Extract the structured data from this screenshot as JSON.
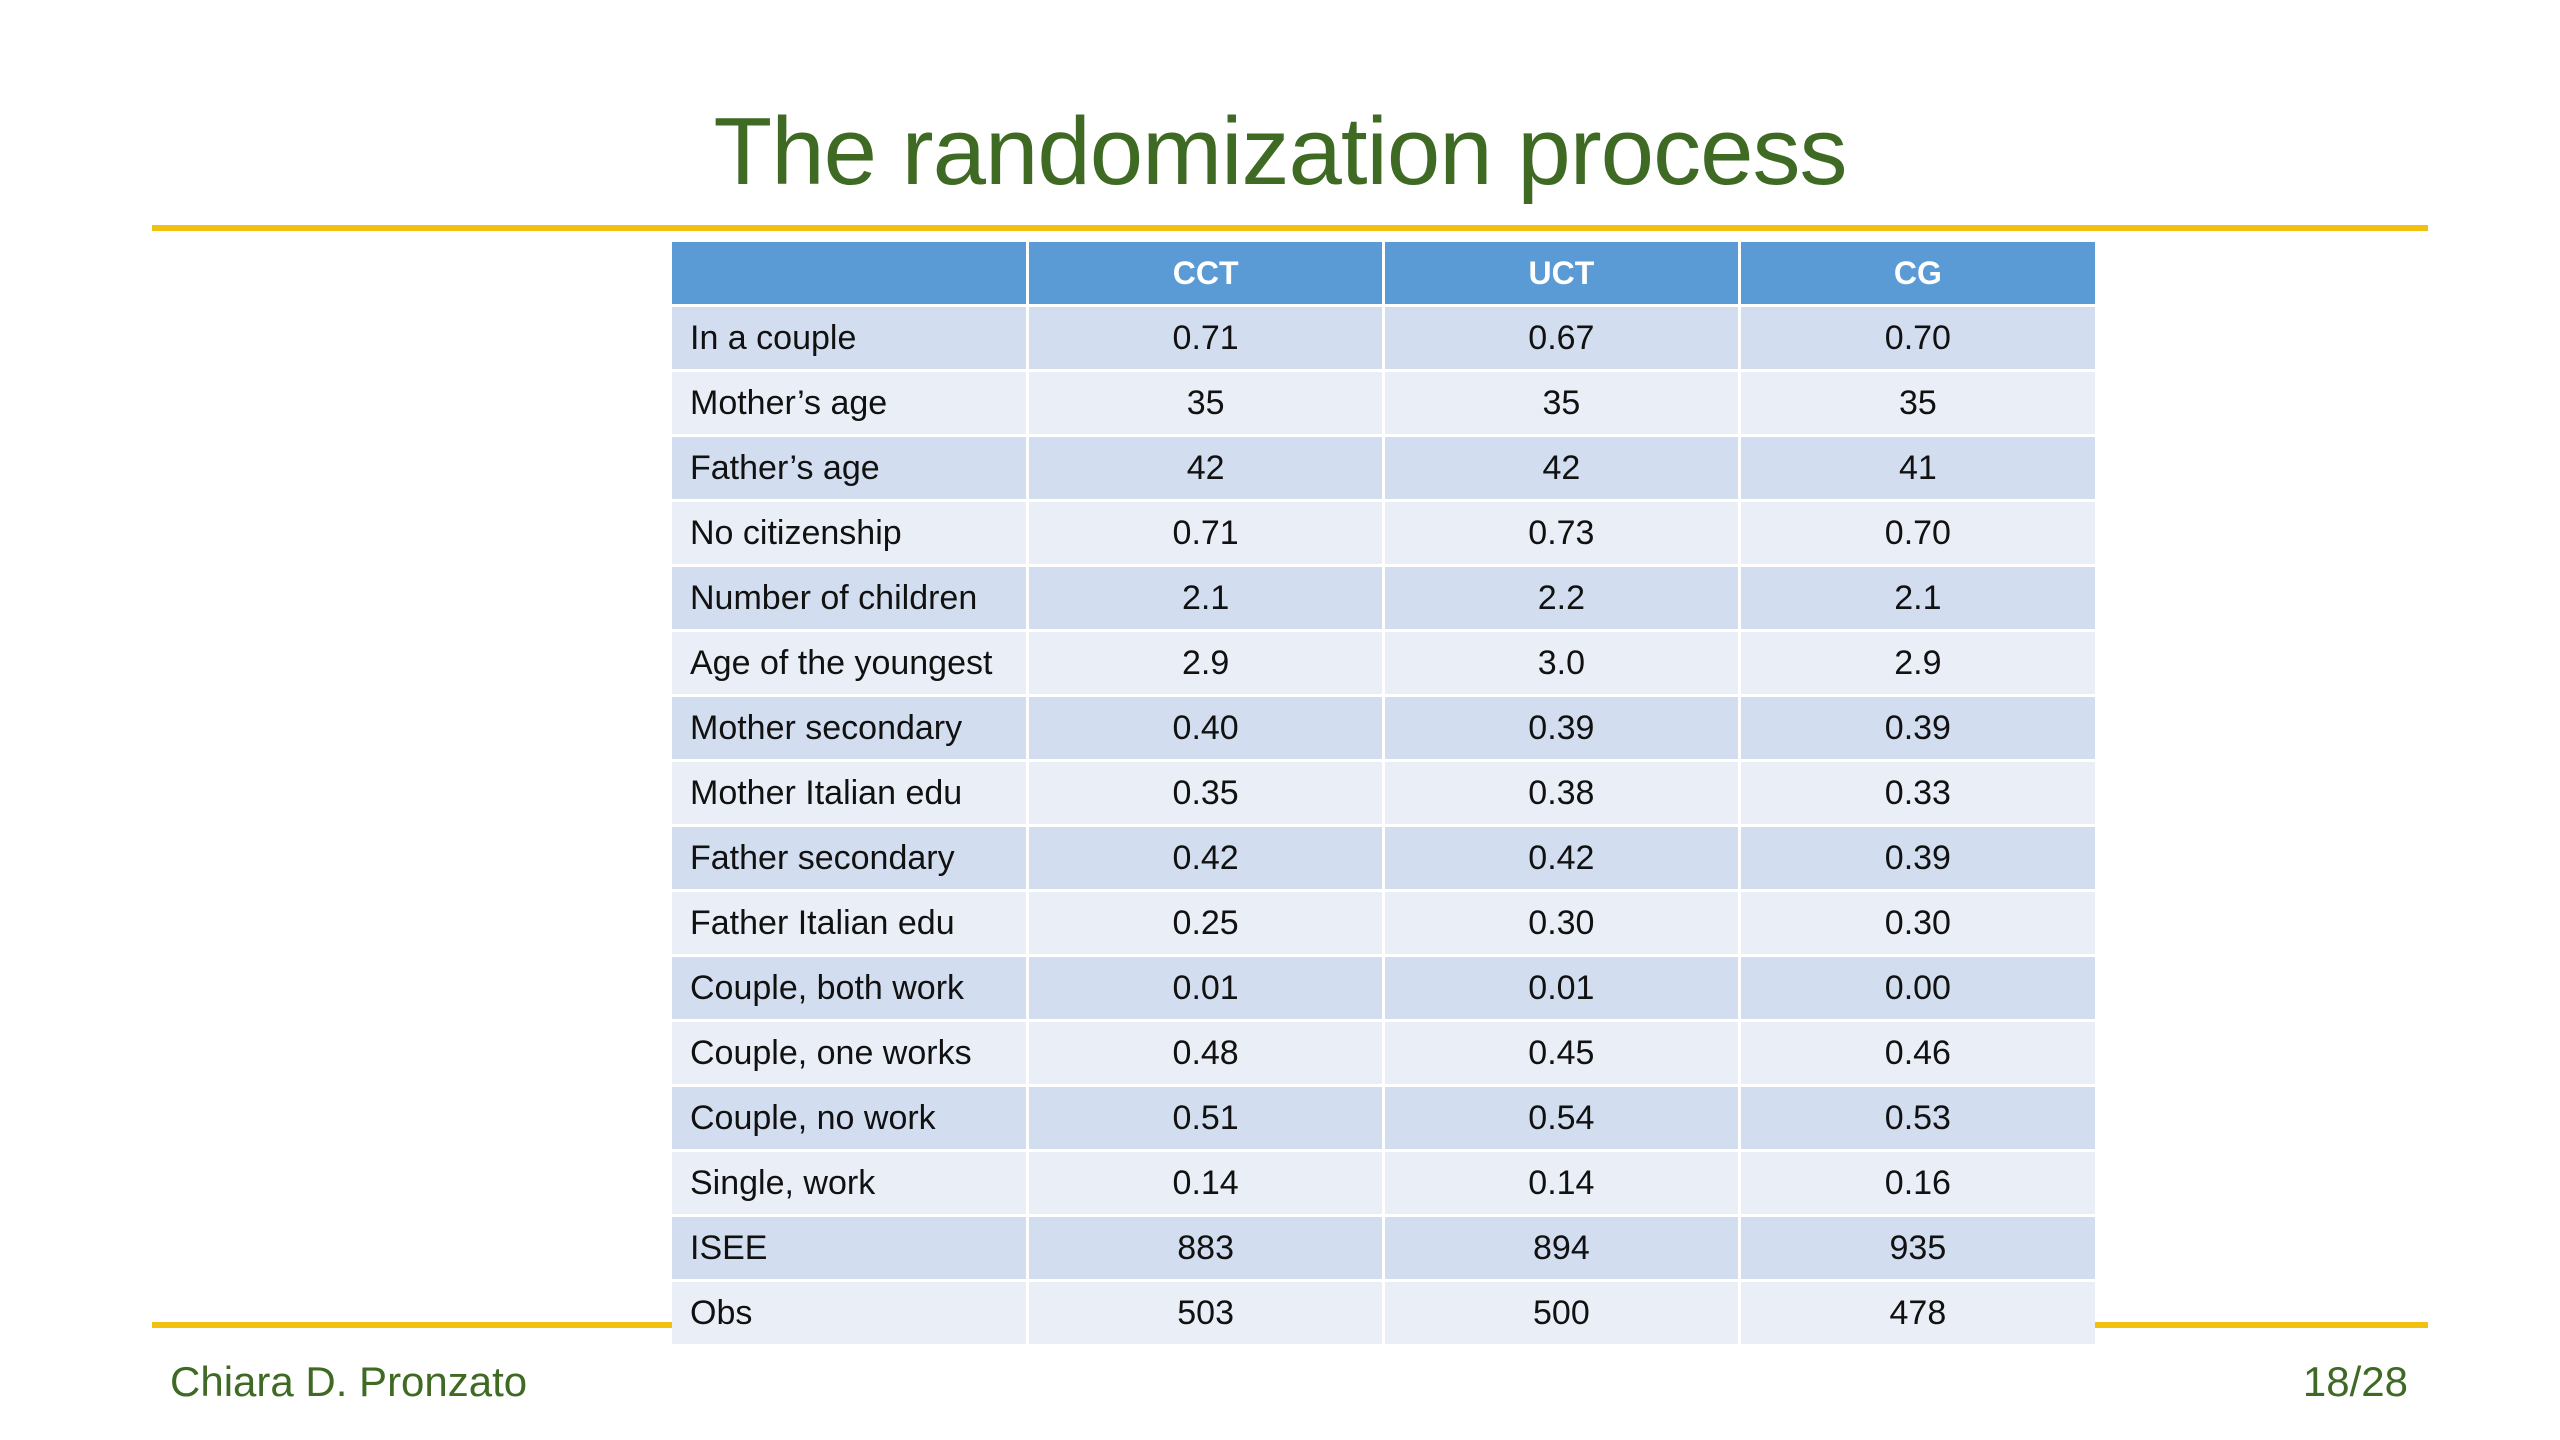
{
  "slide": {
    "title": "The randomization process",
    "author": "Chiara D. Pronzato",
    "page": "18/28"
  },
  "colors": {
    "title": "#3f6a24",
    "rule": "#f2c10f",
    "header_bg": "#5b9bd5",
    "row_dark": "#d2deef",
    "row_light": "#eaeff7"
  },
  "table": {
    "headers": [
      "",
      "CCT",
      "UCT",
      "CG"
    ],
    "rows": [
      {
        "label": "In a couple",
        "cct": "0.71",
        "uct": "0.67",
        "cg": "0.70"
      },
      {
        "label": "Mother’s age",
        "cct": "35",
        "uct": "35",
        "cg": "35"
      },
      {
        "label": "Father’s age",
        "cct": "42",
        "uct": "42",
        "cg": "41"
      },
      {
        "label": "No citizenship",
        "cct": "0.71",
        "uct": "0.73",
        "cg": "0.70"
      },
      {
        "label": "Number of children",
        "cct": "2.1",
        "uct": "2.2",
        "cg": "2.1"
      },
      {
        "label": "Age of the youngest",
        "cct": "2.9",
        "uct": "3.0",
        "cg": "2.9"
      },
      {
        "label": "Mother secondary",
        "cct": "0.40",
        "uct": "0.39",
        "cg": "0.39"
      },
      {
        "label": "Mother Italian edu",
        "cct": "0.35",
        "uct": "0.38",
        "cg": "0.33"
      },
      {
        "label": "Father secondary",
        "cct": "0.42",
        "uct": "0.42",
        "cg": "0.39"
      },
      {
        "label": "Father Italian edu",
        "cct": "0.25",
        "uct": "0.30",
        "cg": "0.30"
      },
      {
        "label": "Couple, both work",
        "cct": "0.01",
        "uct": "0.01",
        "cg": "0.00"
      },
      {
        "label": "Couple, one works",
        "cct": "0.48",
        "uct": "0.45",
        "cg": "0.46"
      },
      {
        "label": "Couple, no work",
        "cct": "0.51",
        "uct": "0.54",
        "cg": "0.53"
      },
      {
        "label": "Single, work",
        "cct": "0.14",
        "uct": "0.14",
        "cg": "0.16"
      },
      {
        "label": "ISEE",
        "cct": "883",
        "uct": "894",
        "cg": "935"
      },
      {
        "label": "Obs",
        "cct": "503",
        "uct": "500",
        "cg": "478"
      }
    ]
  }
}
